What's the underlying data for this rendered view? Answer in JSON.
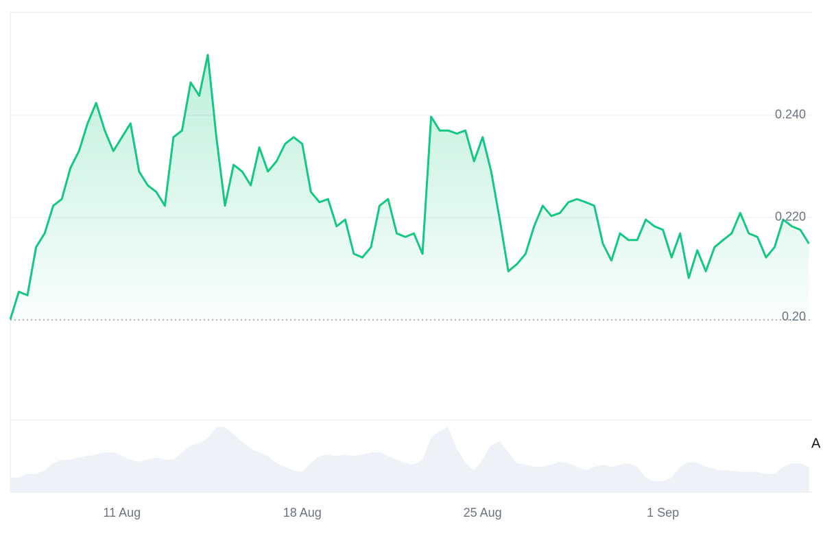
{
  "chart_data": {
    "type": "line",
    "categories": [
      null,
      null,
      null,
      null,
      null,
      null,
      null,
      null,
      null,
      null,
      null,
      null,
      null,
      "11 Aug",
      null,
      null,
      null,
      null,
      null,
      null,
      null,
      null,
      null,
      null,
      null,
      null,
      null,
      null,
      null,
      null,
      null,
      null,
      null,
      null,
      "18 Aug",
      null,
      null,
      null,
      null,
      null,
      null,
      null,
      null,
      null,
      null,
      null,
      null,
      null,
      null,
      null,
      null,
      null,
      null,
      null,
      null,
      "25 Aug",
      null,
      null,
      null,
      null,
      null,
      null,
      null,
      null,
      null,
      null,
      null,
      null,
      null,
      null,
      null,
      null,
      null,
      null,
      null,
      null,
      "1 Sep",
      null,
      null,
      null,
      null,
      null,
      null,
      null,
      null,
      null,
      null,
      null,
      null,
      null,
      null,
      null,
      null,
      null
    ],
    "values": [
      0.2001,
      0.2055,
      0.2048,
      0.2142,
      0.2169,
      0.2223,
      0.2236,
      0.2297,
      0.233,
      0.2384,
      0.2424,
      0.237,
      0.233,
      0.2357,
      0.2384,
      0.229,
      0.2263,
      0.225,
      0.2223,
      0.2357,
      0.237,
      0.2464,
      0.2438,
      0.2518,
      0.2357,
      0.2223,
      0.2303,
      0.229,
      0.2263,
      0.2337,
      0.229,
      0.231,
      0.2344,
      0.2357,
      0.2344,
      0.225,
      0.223,
      0.2236,
      0.2183,
      0.2196,
      0.2129,
      0.2122,
      0.2142,
      0.2223,
      0.2236,
      0.2169,
      0.2162,
      0.2169,
      0.2129,
      0.2397,
      0.237,
      0.237,
      0.2364,
      0.237,
      0.231,
      0.2357,
      0.229,
      0.2196,
      0.2095,
      0.2109,
      0.2129,
      0.2183,
      0.2223,
      0.2203,
      0.2209,
      0.223,
      0.2236,
      0.223,
      0.2223,
      0.2149,
      0.2116,
      0.2169,
      0.2156,
      0.2156,
      0.2196,
      0.2183,
      0.2176,
      0.2122,
      0.2169,
      0.2082,
      0.2136,
      0.2095,
      0.2142,
      0.2156,
      0.2169,
      0.2209,
      0.2169,
      0.2162,
      0.2122,
      0.2142,
      0.2196,
      0.2183,
      0.2176,
      0.2149
    ],
    "color": "#16c784",
    "volume": {
      "values": [
        20,
        20,
        25,
        25,
        30,
        40,
        45,
        45,
        48,
        50,
        52,
        55,
        55,
        50,
        45,
        42,
        45,
        48,
        45,
        45,
        55,
        65,
        68,
        75,
        90,
        90,
        80,
        70,
        60,
        55,
        50,
        40,
        35,
        30,
        28,
        40,
        50,
        52,
        50,
        52,
        50,
        52,
        55,
        55,
        50,
        45,
        40,
        38,
        45,
        75,
        85,
        90,
        60,
        40,
        30,
        45,
        65,
        70,
        55,
        40,
        38,
        35,
        35,
        38,
        42,
        40,
        35,
        30,
        35,
        38,
        35,
        38,
        40,
        35,
        20,
        15,
        15,
        20,
        35,
        42,
        40,
        35,
        32,
        30,
        30,
        28,
        28,
        28,
        25,
        25,
        35,
        40,
        40,
        35
      ],
      "color": "#eef1f5",
      "vlim": [
        0,
        100
      ]
    },
    "ylim": [
      0.1807,
      0.2601
    ],
    "yticks": [
      {
        "value": 0.24,
        "label": "0.240"
      },
      {
        "value": 0.22,
        "label": "0.220"
      }
    ],
    "baseline": {
      "value": 0.2,
      "label": "0.20"
    },
    "annotation": "A",
    "grid": true
  }
}
